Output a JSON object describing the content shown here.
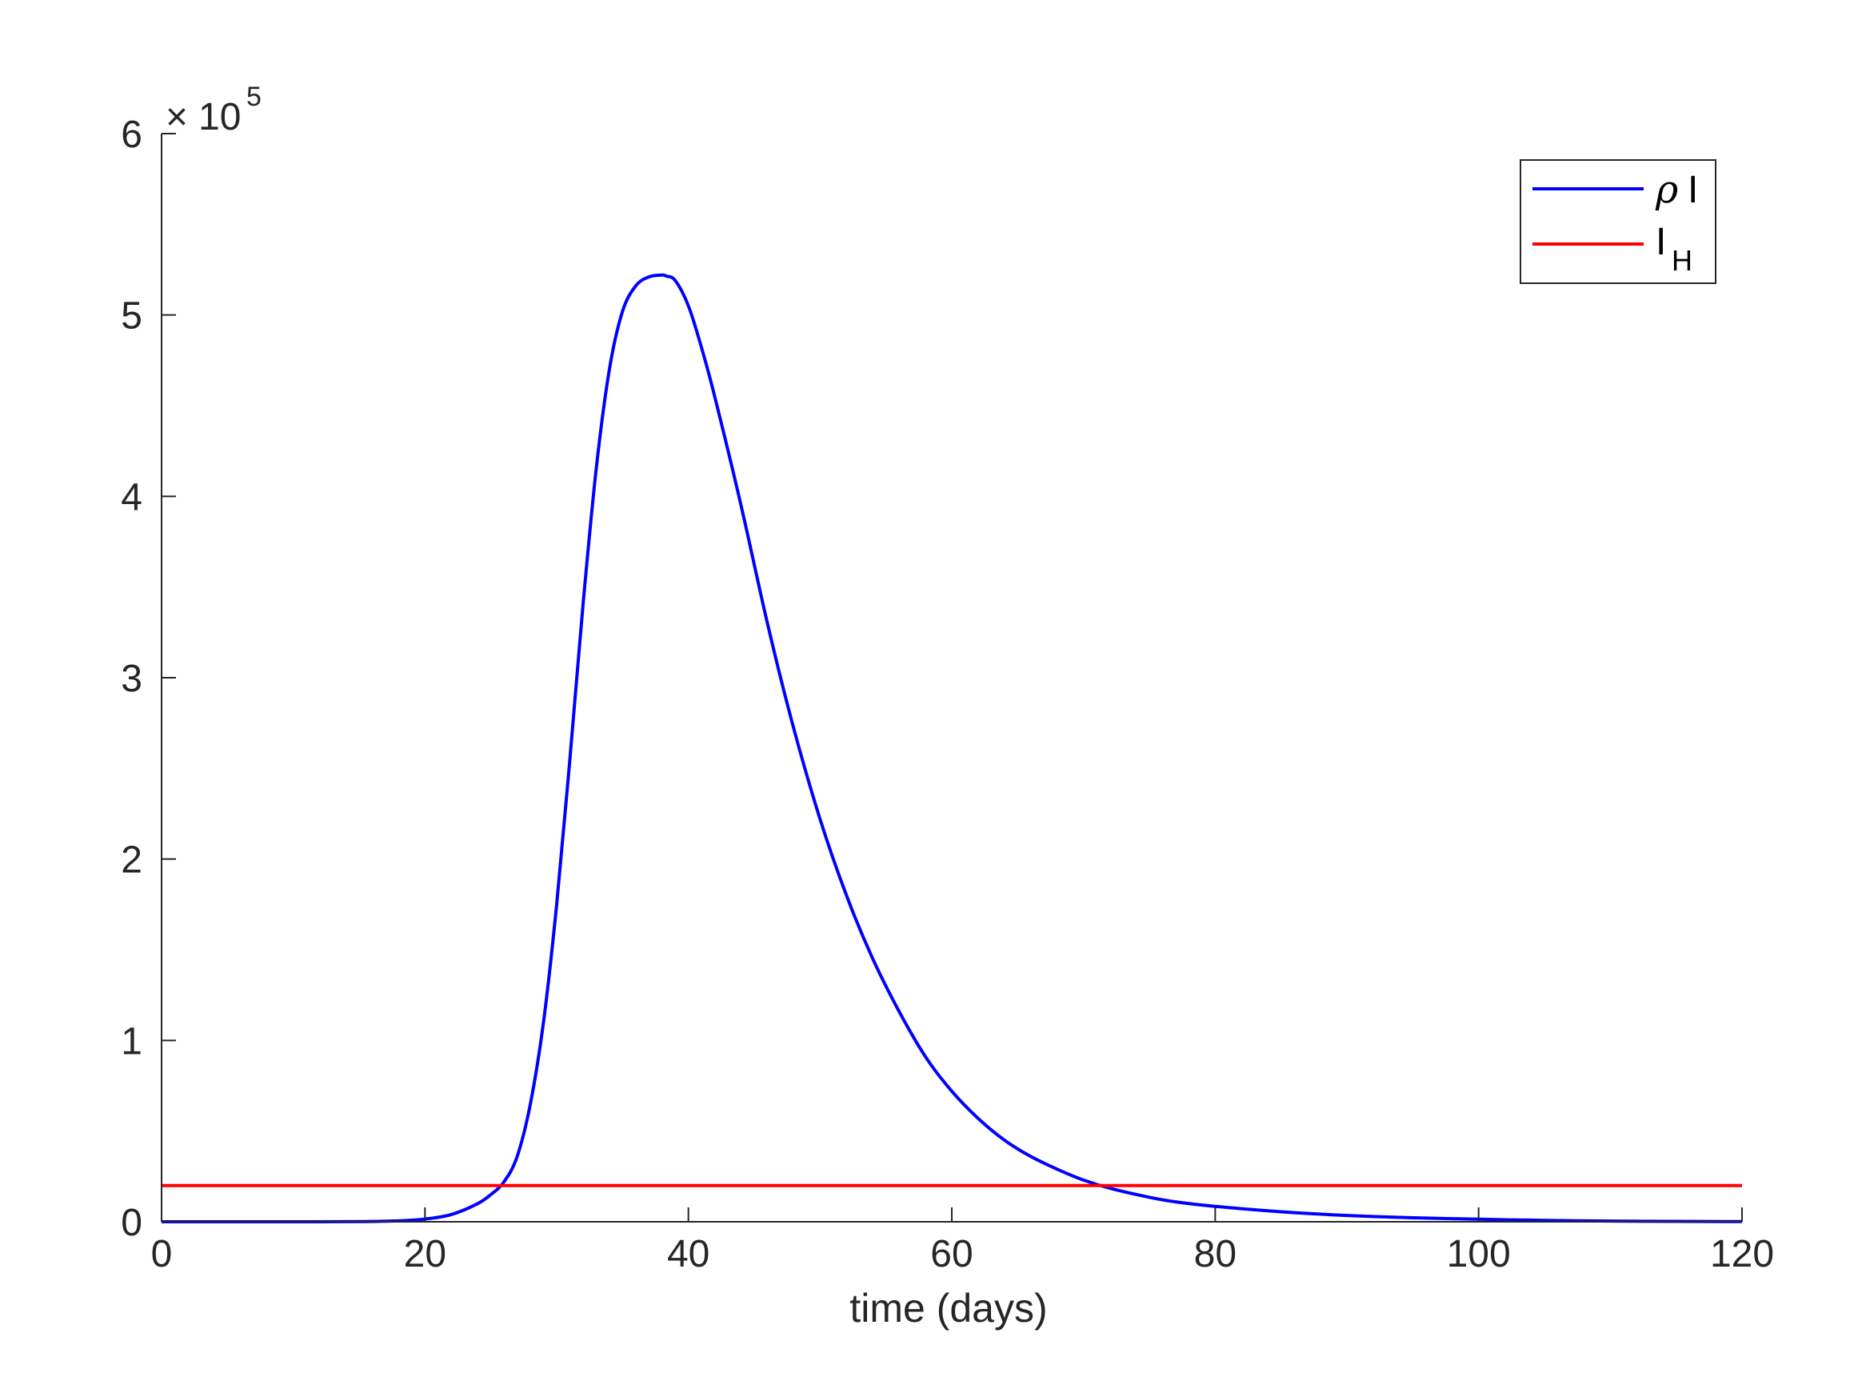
{
  "chart_data": {
    "type": "line",
    "title": "",
    "xlabel": "time (days)",
    "ylabel": "",
    "xlim": [
      0,
      120
    ],
    "ylim": [
      0,
      600000
    ],
    "xticks": [
      0,
      20,
      40,
      60,
      80,
      100,
      120
    ],
    "xtick_labels": [
      "0",
      "20",
      "40",
      "60",
      "80",
      "100",
      "120"
    ],
    "yticks": [
      0,
      100000,
      200000,
      300000,
      400000,
      500000,
      600000
    ],
    "ytick_labels": [
      "0",
      "1",
      "2",
      "3",
      "4",
      "5",
      "6"
    ],
    "y_exponent": {
      "base": "10",
      "power": "5",
      "multiplier": "×"
    },
    "grid": false,
    "legend_position": "top-right",
    "series": [
      {
        "name": "ρ I",
        "name_symbol": "ρ",
        "name_text": "I",
        "color": "#0000ff",
        "x": [
          0,
          5,
          10,
          15,
          18,
          20,
          22,
          24,
          25,
          26,
          27,
          28,
          29,
          30,
          31,
          32,
          33,
          34,
          35,
          36,
          37,
          38,
          38.3,
          39,
          40,
          41,
          42,
          44,
          46,
          48,
          50,
          52,
          54,
          56,
          58,
          60,
          62,
          64,
          66,
          68,
          70,
          72,
          75,
          77,
          80,
          85,
          90,
          95,
          100,
          105,
          110,
          115,
          120
        ],
        "y": [
          0,
          0,
          0,
          100,
          500,
          1500,
          4000,
          10000,
          15000,
          22000,
          36000,
          65000,
          110000,
          175000,
          255000,
          340000,
          415000,
          470000,
          502000,
          516000,
          521000,
          522000,
          521500,
          519000,
          505000,
          482000,
          455000,
          395000,
          330000,
          272000,
          222000,
          180000,
          145000,
          116000,
          91000,
          72000,
          57000,
          45000,
          36000,
          29000,
          23000,
          18500,
          13500,
          11000,
          8500,
          5500,
          3500,
          2200,
          1400,
          800,
          400,
          200,
          100
        ]
      },
      {
        "name": "I_H",
        "name_text": "I",
        "name_subscript": "H",
        "color": "#ff0000",
        "x": [
          0,
          120
        ],
        "y": [
          20000,
          20000
        ]
      }
    ]
  }
}
